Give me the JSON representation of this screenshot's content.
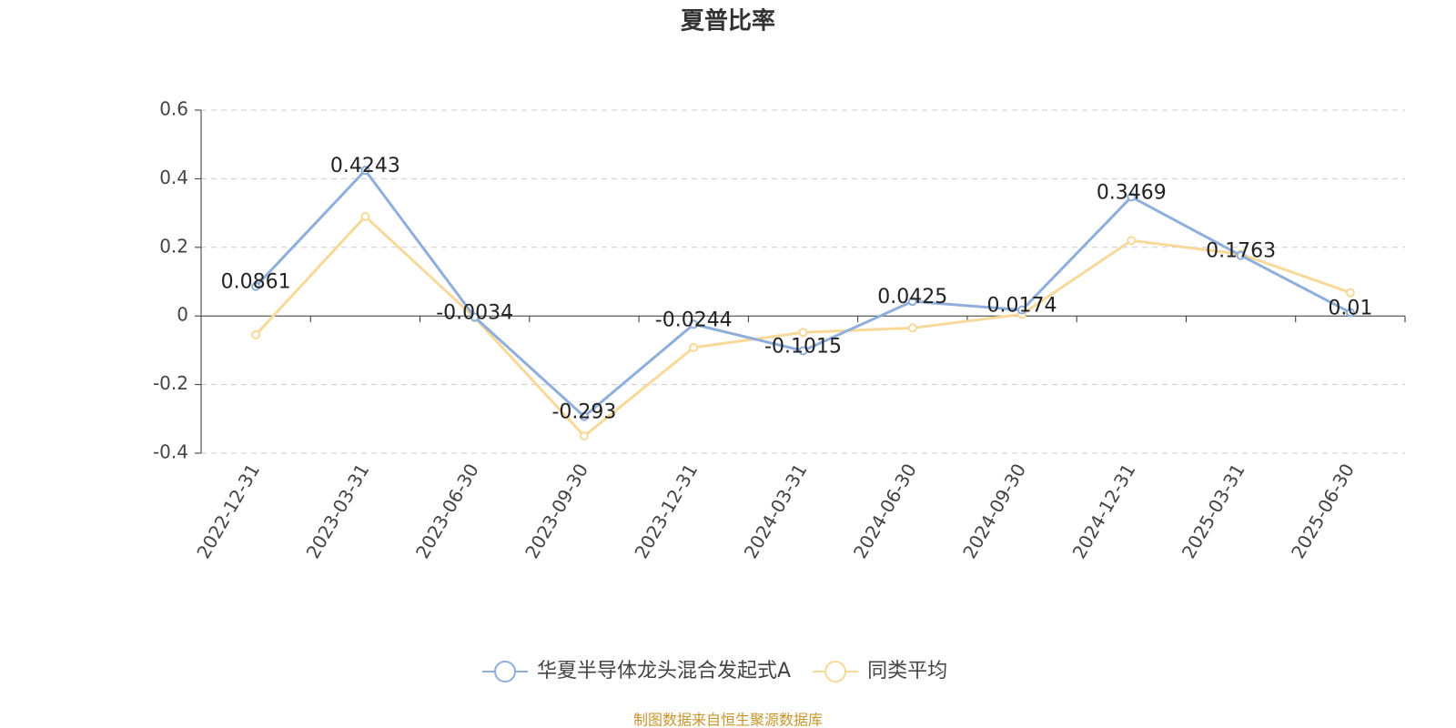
{
  "chart_data": {
    "type": "line",
    "title": "夏普比率",
    "categories": [
      "2022-12-31",
      "2023-03-31",
      "2023-06-30",
      "2023-09-30",
      "2023-12-31",
      "2024-03-31",
      "2024-06-30",
      "2024-09-30",
      "2024-12-31",
      "2025-03-31",
      "2025-06-30"
    ],
    "series": [
      {
        "name": "华夏半导体龙头混合发起式A",
        "color": "#8eaedb",
        "values": [
          0.0861,
          0.4243,
          -0.0034,
          -0.293,
          -0.0244,
          -0.1015,
          0.0425,
          0.0174,
          0.3469,
          0.1763,
          0.01
        ]
      },
      {
        "name": "同类平均",
        "color": "#f9d99a",
        "values": [
          -0.055,
          0.29,
          -0.005,
          -0.35,
          -0.092,
          -0.048,
          -0.035,
          0.005,
          0.22,
          0.18,
          0.068
        ]
      }
    ],
    "ylim": [
      -0.4,
      0.6
    ],
    "yticks": [
      -0.4,
      -0.2,
      0,
      0.2,
      0.4,
      0.6
    ],
    "grid": true,
    "legend": "bottom",
    "source": "制图数据来自恒生聚源数据库"
  }
}
